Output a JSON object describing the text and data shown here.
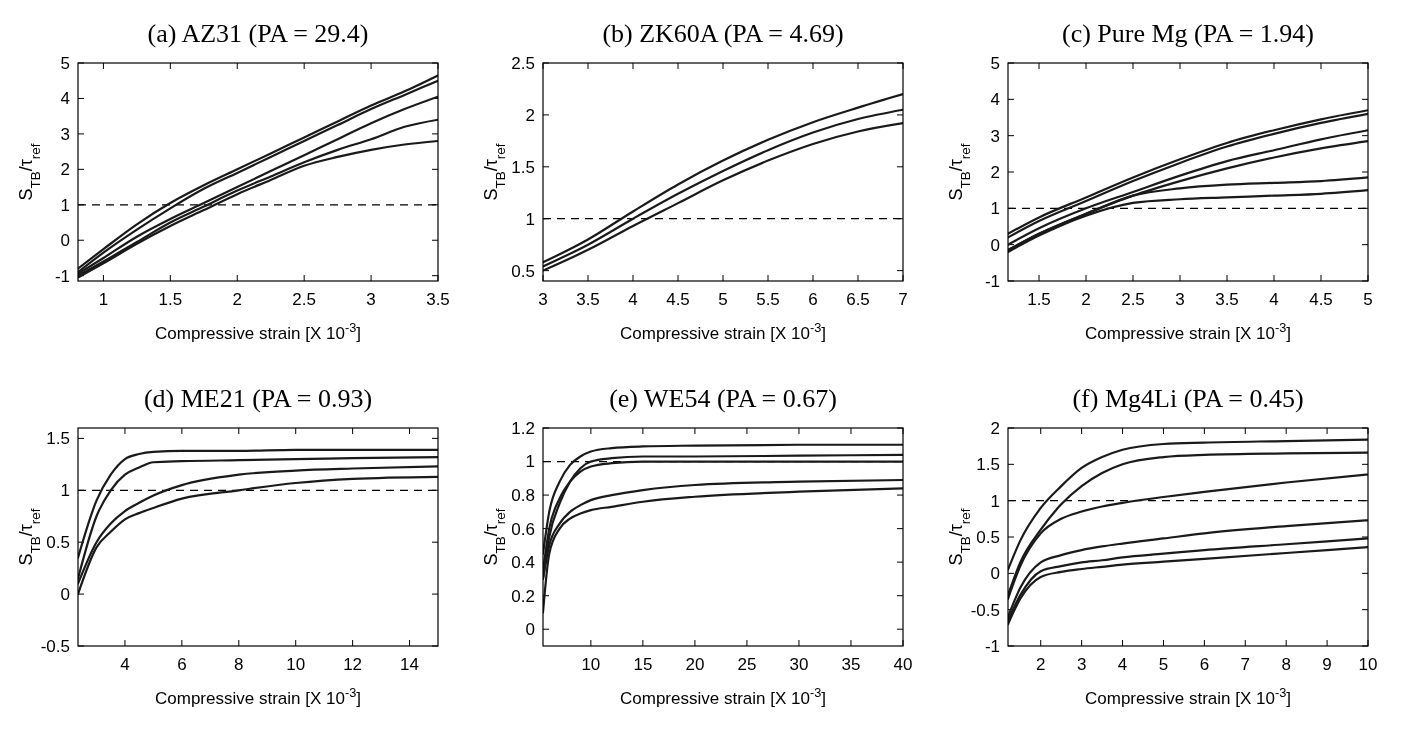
{
  "chart_data": [
    {
      "type": "line",
      "title": "(a) AZ31 (PA = 29.4)",
      "xlabel": "Compressive strain [X 10$^{-3}$]",
      "ylabel": "S$_{TB}$/τ$_{ref}$",
      "x": [
        0.81,
        1,
        1.25,
        1.5,
        1.75,
        2,
        2.25,
        2.5,
        2.75,
        3,
        3.25,
        3.5
      ],
      "xlim": [
        0.81,
        3.5
      ],
      "xticks": [
        1,
        1.5,
        2,
        2.5,
        3,
        3.5
      ],
      "ylim": [
        -1.15,
        5
      ],
      "yticks": [
        -1,
        0,
        1,
        2,
        3,
        4,
        5
      ],
      "grid": false,
      "line_style": "solid",
      "ref_lines": [
        {
          "axis": "y",
          "value": 1,
          "line_style": "dashed",
          "color": "#000000"
        }
      ],
      "series": [
        {
          "color": "#1a1a1a",
          "values": [
            -0.8,
            -0.25,
            0.45,
            1.05,
            1.55,
            2.0,
            2.45,
            2.9,
            3.35,
            3.8,
            4.2,
            4.65
          ]
        },
        {
          "color": "#1a1a1a",
          "values": [
            -0.9,
            -0.35,
            0.3,
            0.9,
            1.45,
            1.9,
            2.35,
            2.8,
            3.25,
            3.7,
            4.1,
            4.5
          ]
        },
        {
          "color": "#1a1a1a",
          "values": [
            -0.95,
            -0.5,
            0.1,
            0.6,
            1.05,
            1.5,
            1.95,
            2.4,
            2.85,
            3.3,
            3.7,
            4.05
          ]
        },
        {
          "color": "#1a1a1a",
          "values": [
            -1.0,
            -0.6,
            -0.05,
            0.5,
            0.95,
            1.4,
            1.8,
            2.2,
            2.55,
            2.85,
            3.2,
            3.4
          ]
        },
        {
          "color": "#1a1a1a",
          "values": [
            -1.05,
            -0.65,
            -0.1,
            0.4,
            0.85,
            1.3,
            1.7,
            2.1,
            2.35,
            2.55,
            2.7,
            2.8
          ]
        }
      ]
    },
    {
      "type": "line",
      "title": "(b) ZK60A (PA = 4.69)",
      "xlabel": "Compressive strain [X 10$^{-3}$]",
      "ylabel": "S$_{TB}$/τ$_{ref}$",
      "x": [
        3,
        3.5,
        4,
        4.5,
        5,
        5.5,
        6,
        6.5,
        7
      ],
      "xlim": [
        3,
        7
      ],
      "xticks": [
        3,
        3.5,
        4,
        4.5,
        5,
        5.5,
        6,
        6.5,
        7
      ],
      "ylim": [
        0.4,
        2.5
      ],
      "yticks": [
        0.5,
        1,
        1.5,
        2,
        2.5
      ],
      "grid": false,
      "line_style": "solid",
      "ref_lines": [
        {
          "axis": "y",
          "value": 1,
          "line_style": "dashed",
          "color": "#000000"
        }
      ],
      "series": [
        {
          "color": "#1a1a1a",
          "values": [
            0.58,
            0.8,
            1.07,
            1.33,
            1.56,
            1.76,
            1.93,
            2.07,
            2.2
          ]
        },
        {
          "color": "#1a1a1a",
          "values": [
            0.54,
            0.75,
            1.0,
            1.24,
            1.46,
            1.66,
            1.83,
            1.96,
            2.05
          ]
        },
        {
          "color": "#1a1a1a",
          "values": [
            0.5,
            0.7,
            0.93,
            1.15,
            1.37,
            1.56,
            1.72,
            1.84,
            1.92
          ]
        }
      ]
    },
    {
      "type": "line",
      "title": "(c) Pure Mg (PA = 1.94)",
      "xlabel": "Compressive strain [X 10$^{-3}$]",
      "ylabel": "S$_{TB}$/τ$_{ref}$",
      "x": [
        1.17,
        1.5,
        2,
        2.5,
        3,
        3.5,
        4,
        4.5,
        5
      ],
      "xlim": [
        1.17,
        5
      ],
      "xticks": [
        1.5,
        2,
        2.5,
        3,
        3.5,
        4,
        4.5,
        5
      ],
      "ylim": [
        -1,
        5
      ],
      "yticks": [
        -1,
        0,
        1,
        2,
        3,
        4,
        5
      ],
      "grid": false,
      "line_style": "solid",
      "ref_lines": [
        {
          "axis": "y",
          "value": 1,
          "line_style": "dashed",
          "color": "#000000"
        }
      ],
      "series": [
        {
          "color": "#1a1a1a",
          "values": [
            0.3,
            0.75,
            1.3,
            1.85,
            2.35,
            2.8,
            3.15,
            3.45,
            3.7
          ]
        },
        {
          "color": "#1a1a1a",
          "values": [
            0.2,
            0.65,
            1.2,
            1.75,
            2.25,
            2.7,
            3.05,
            3.35,
            3.6
          ]
        },
        {
          "color": "#1a1a1a",
          "values": [
            0.0,
            0.45,
            1.0,
            1.45,
            1.9,
            2.3,
            2.6,
            2.9,
            3.15
          ]
        },
        {
          "color": "#1a1a1a",
          "values": [
            -0.15,
            0.3,
            0.85,
            1.35,
            1.75,
            2.1,
            2.4,
            2.65,
            2.85
          ]
        },
        {
          "color": "#1a1a1a",
          "values": [
            -0.15,
            0.3,
            0.85,
            1.35,
            1.55,
            1.65,
            1.7,
            1.75,
            1.85
          ]
        },
        {
          "color": "#1a1a1a",
          "values": [
            -0.2,
            0.25,
            0.8,
            1.15,
            1.25,
            1.3,
            1.35,
            1.4,
            1.5
          ]
        }
      ]
    },
    {
      "type": "line",
      "title": "(d) ME21 (PA = 0.93)",
      "xlabel": "Compressive strain [X 10$^{-3}$]",
      "ylabel": "S$_{TB}$/τ$_{ref}$",
      "x": [
        2.35,
        3,
        3.5,
        4,
        4.5,
        5,
        6,
        8,
        10,
        12,
        15
      ],
      "xlim": [
        2.35,
        15
      ],
      "xticks": [
        4,
        6,
        8,
        10,
        12,
        14
      ],
      "ylim": [
        -0.5,
        1.6
      ],
      "yticks": [
        -0.5,
        0,
        0.5,
        1,
        1.5
      ],
      "grid": false,
      "line_style": "solid",
      "ref_lines": [
        {
          "axis": "y",
          "value": 1,
          "line_style": "dashed",
          "color": "#000000"
        }
      ],
      "series": [
        {
          "color": "#1a1a1a",
          "values": [
            0.35,
            0.9,
            1.15,
            1.3,
            1.35,
            1.37,
            1.38,
            1.38,
            1.39,
            1.39,
            1.39
          ]
        },
        {
          "color": "#1a1a1a",
          "values": [
            0.15,
            0.75,
            1.0,
            1.15,
            1.22,
            1.27,
            1.28,
            1.29,
            1.3,
            1.31,
            1.32
          ]
        },
        {
          "color": "#1a1a1a",
          "values": [
            0.1,
            0.5,
            0.68,
            0.8,
            0.88,
            0.95,
            1.05,
            1.15,
            1.19,
            1.21,
            1.23
          ]
        },
        {
          "color": "#1a1a1a",
          "values": [
            0.0,
            0.45,
            0.6,
            0.72,
            0.78,
            0.83,
            0.92,
            1.0,
            1.07,
            1.11,
            1.13
          ]
        }
      ]
    },
    {
      "type": "line",
      "title": "(e) WE54 (PA = 0.67)",
      "xlabel": "Compressive strain [X 10$^{-3}$]",
      "ylabel": "S$_{TB}$/τ$_{ref}$",
      "x": [
        5.4,
        6,
        7,
        8,
        9,
        10,
        12,
        15,
        20,
        30,
        40
      ],
      "xlim": [
        5.4,
        40
      ],
      "xticks": [
        10,
        15,
        20,
        25,
        30,
        35,
        40
      ],
      "ylim": [
        -0.1,
        1.2
      ],
      "yticks": [
        0,
        0.2,
        0.4,
        0.6,
        0.8,
        1,
        1.2
      ],
      "grid": false,
      "line_style": "solid",
      "ref_lines": [
        {
          "axis": "y",
          "value": 1,
          "line_style": "dashed",
          "color": "#000000"
        }
      ],
      "series": [
        {
          "color": "#1a1a1a",
          "values": [
            0.45,
            0.7,
            0.88,
            0.98,
            1.03,
            1.06,
            1.08,
            1.09,
            1.095,
            1.1,
            1.1
          ]
        },
        {
          "color": "#1a1a1a",
          "values": [
            0.3,
            0.55,
            0.75,
            0.88,
            0.96,
            1.0,
            1.02,
            1.03,
            1.03,
            1.035,
            1.04
          ]
        },
        {
          "color": "#1a1a1a",
          "values": [
            0.35,
            0.6,
            0.78,
            0.88,
            0.94,
            0.97,
            0.99,
            1.0,
            1.0,
            1.0,
            1.0
          ]
        },
        {
          "color": "#1a1a1a",
          "values": [
            0.3,
            0.5,
            0.63,
            0.7,
            0.74,
            0.77,
            0.8,
            0.83,
            0.86,
            0.88,
            0.89
          ]
        },
        {
          "color": "#1a1a1a",
          "values": [
            0.1,
            0.45,
            0.6,
            0.66,
            0.69,
            0.71,
            0.73,
            0.76,
            0.79,
            0.82,
            0.84
          ]
        }
      ]
    },
    {
      "type": "line",
      "title": "(f) Mg4Li (PA = 0.45)",
      "xlabel": "Compressive strain [X 10$^{-3}$]",
      "ylabel": "S$_{TB}$/τ$_{ref}$",
      "x": [
        1.2,
        1.5,
        2,
        2.5,
        3,
        3.5,
        4,
        5,
        6,
        8,
        10
      ],
      "xlim": [
        1.2,
        10
      ],
      "xticks": [
        2,
        3,
        4,
        5,
        6,
        7,
        8,
        9,
        10
      ],
      "ylim": [
        -1,
        2
      ],
      "yticks": [
        -1,
        -0.5,
        0,
        0.5,
        1,
        1.5,
        2
      ],
      "grid": false,
      "line_style": "solid",
      "ref_lines": [
        {
          "axis": "y",
          "value": 1,
          "line_style": "dashed",
          "color": "#000000"
        }
      ],
      "series": [
        {
          "color": "#1a1a1a",
          "values": [
            0.05,
            0.45,
            0.9,
            1.2,
            1.45,
            1.6,
            1.7,
            1.78,
            1.8,
            1.82,
            1.84
          ]
        },
        {
          "color": "#1a1a1a",
          "values": [
            -0.3,
            0.15,
            0.6,
            0.95,
            1.2,
            1.38,
            1.5,
            1.6,
            1.63,
            1.65,
            1.66
          ]
        },
        {
          "color": "#1a1a1a",
          "values": [
            -0.35,
            0.1,
            0.55,
            0.75,
            0.85,
            0.92,
            0.97,
            1.05,
            1.12,
            1.25,
            1.36
          ]
        },
        {
          "color": "#1a1a1a",
          "values": [
            -0.6,
            -0.2,
            0.15,
            0.25,
            0.32,
            0.37,
            0.41,
            0.48,
            0.55,
            0.65,
            0.73
          ]
        },
        {
          "color": "#1a1a1a",
          "values": [
            -0.65,
            -0.3,
            0.03,
            0.1,
            0.15,
            0.18,
            0.22,
            0.27,
            0.32,
            0.4,
            0.48
          ]
        },
        {
          "color": "#1a1a1a",
          "values": [
            -0.7,
            -0.35,
            -0.05,
            0.02,
            0.06,
            0.09,
            0.12,
            0.16,
            0.2,
            0.28,
            0.36
          ]
        }
      ]
    }
  ]
}
